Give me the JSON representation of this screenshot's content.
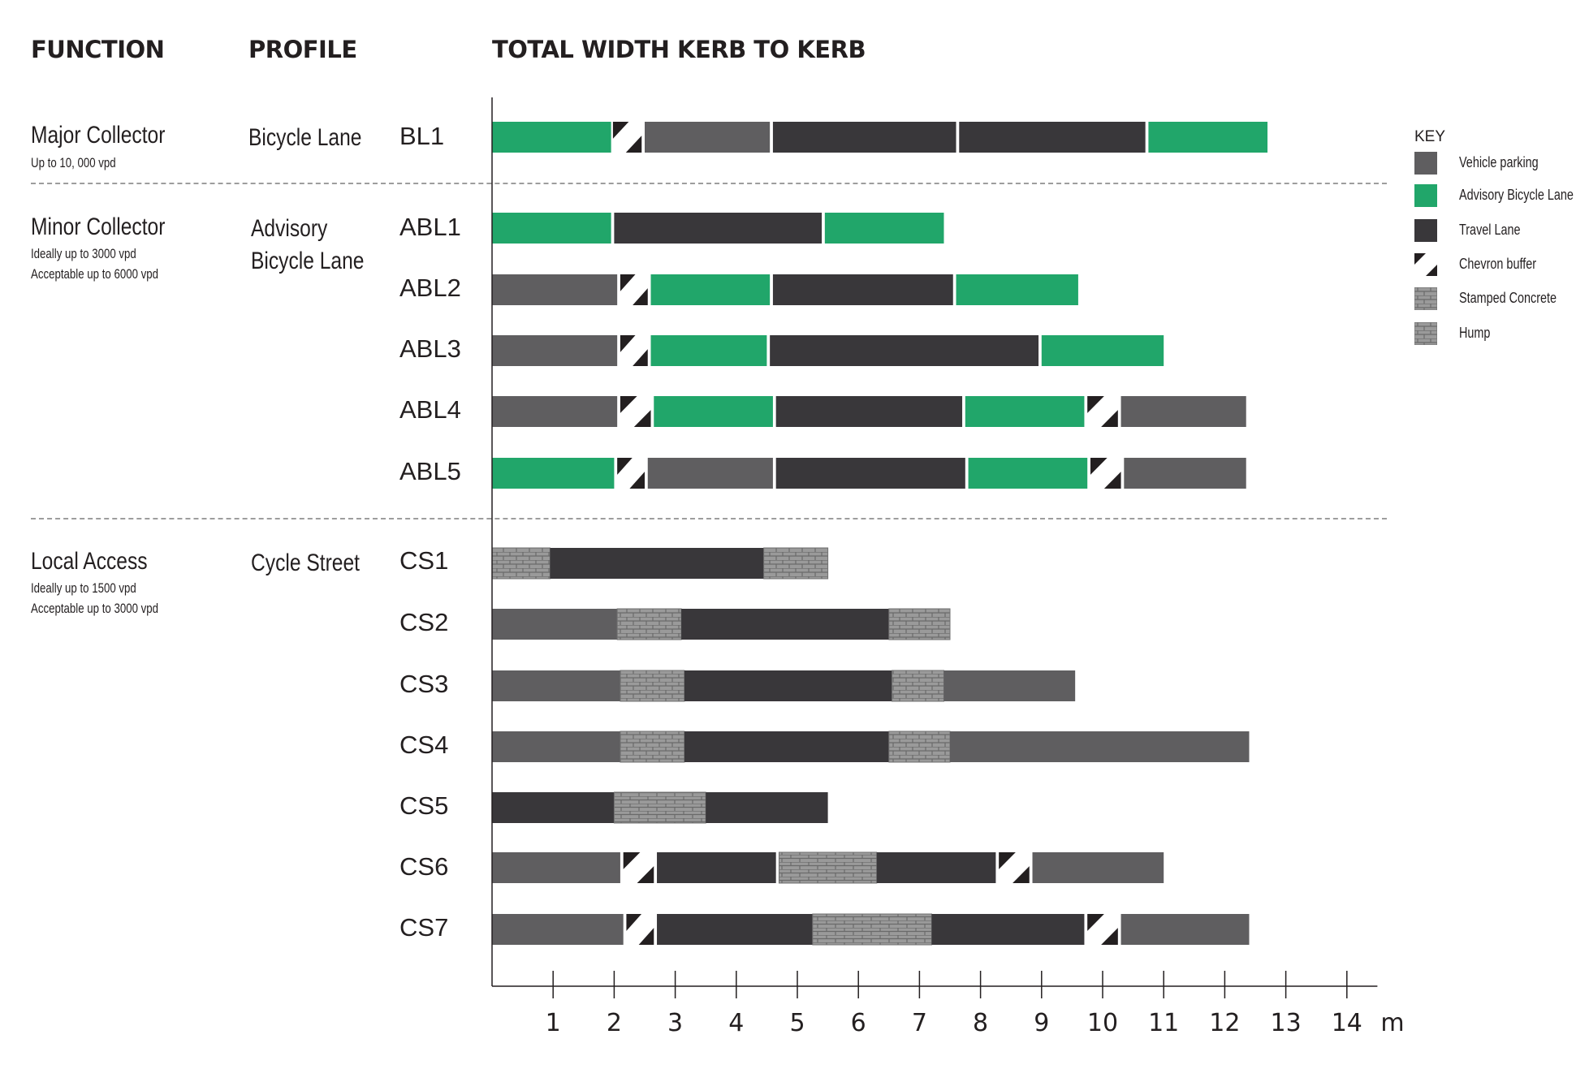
{
  "headers": {
    "function": "FUNCTION",
    "profile": "PROFILE",
    "total": "TOTAL WIDTH KERB TO KERB"
  },
  "functions": [
    {
      "title": "Major Collector",
      "sub1": "Up to 10, 000 vpd",
      "sub2": ""
    },
    {
      "title": "Minor Collector",
      "sub1": "Ideally up to 3000 vpd",
      "sub2": "Acceptable up to 6000 vpd"
    },
    {
      "title": "Local Access",
      "sub1": "Ideally up to 1500 vpd",
      "sub2": "Acceptable up  to 3000 vpd"
    }
  ],
  "profiles": [
    {
      "line1": "Bicycle Lane",
      "line2": ""
    },
    {
      "line1": "Advisory",
      "line2": "Bicycle  Lane"
    },
    {
      "line1": "Cycle Street",
      "line2": ""
    }
  ],
  "key": {
    "title": "KEY",
    "items": [
      {
        "type": "parking",
        "label": "Vehicle parking"
      },
      {
        "type": "abl",
        "label": "Advisory Bicycle Lane"
      },
      {
        "type": "travel",
        "label": "Travel Lane"
      },
      {
        "type": "chevron",
        "label": "Chevron buffer"
      },
      {
        "type": "stamped",
        "label": "Stamped Concrete"
      },
      {
        "type": "hump",
        "label": "Hump"
      }
    ]
  },
  "colors": {
    "parking": "#5f5e60",
    "abl": "#21a66a",
    "travel": "#39373a",
    "chevron_dark": "#231f20",
    "stamped": "#8c8c8c",
    "hump": "#8c8c8c",
    "axis": "#231f20"
  },
  "chart_data": {
    "type": "bar",
    "title": "TOTAL WIDTH KERB TO KERB",
    "xlabel": "",
    "x_unit": "m",
    "xlim": [
      0,
      14.5
    ],
    "x_ticks": [
      1,
      2,
      3,
      4,
      5,
      6,
      7,
      8,
      9,
      10,
      11,
      12,
      13,
      14
    ],
    "rows": [
      {
        "code": "BL1",
        "segments": [
          {
            "type": "abl",
            "from": 0,
            "to": 1.95
          },
          {
            "type": "chevron",
            "from": 1.98,
            "to": 2.45
          },
          {
            "type": "parking",
            "from": 2.5,
            "to": 4.55
          },
          {
            "type": "travel",
            "from": 4.6,
            "to": 7.6
          },
          {
            "type": "travel",
            "from": 7.65,
            "to": 10.7
          },
          {
            "type": "abl",
            "from": 10.75,
            "to": 12.7
          }
        ]
      },
      {
        "code": "ABL1",
        "segments": [
          {
            "type": "abl",
            "from": 0,
            "to": 1.95
          },
          {
            "type": "travel",
            "from": 2.0,
            "to": 5.4
          },
          {
            "type": "abl",
            "from": 5.45,
            "to": 7.4
          }
        ]
      },
      {
        "code": "ABL2",
        "segments": [
          {
            "type": "parking",
            "from": 0,
            "to": 2.05
          },
          {
            "type": "chevron",
            "from": 2.1,
            "to": 2.55
          },
          {
            "type": "abl",
            "from": 2.6,
            "to": 4.55
          },
          {
            "type": "travel",
            "from": 4.6,
            "to": 7.55
          },
          {
            "type": "abl",
            "from": 7.6,
            "to": 9.6
          }
        ]
      },
      {
        "code": "ABL3",
        "segments": [
          {
            "type": "parking",
            "from": 0,
            "to": 2.05
          },
          {
            "type": "chevron",
            "from": 2.1,
            "to": 2.55
          },
          {
            "type": "abl",
            "from": 2.6,
            "to": 4.5
          },
          {
            "type": "travel",
            "from": 4.55,
            "to": 8.95
          },
          {
            "type": "abl",
            "from": 9.0,
            "to": 11.0
          }
        ]
      },
      {
        "code": "ABL4",
        "segments": [
          {
            "type": "parking",
            "from": 0,
            "to": 2.05
          },
          {
            "type": "chevron",
            "from": 2.1,
            "to": 2.6
          },
          {
            "type": "abl",
            "from": 2.65,
            "to": 4.6
          },
          {
            "type": "travel",
            "from": 4.65,
            "to": 7.7
          },
          {
            "type": "abl",
            "from": 7.75,
            "to": 9.7
          },
          {
            "type": "chevron",
            "from": 9.75,
            "to": 10.25
          },
          {
            "type": "parking",
            "from": 10.3,
            "to": 12.35
          }
        ]
      },
      {
        "code": "ABL5",
        "segments": [
          {
            "type": "abl",
            "from": 0,
            "to": 2.0
          },
          {
            "type": "chevron",
            "from": 2.05,
            "to": 2.5
          },
          {
            "type": "parking",
            "from": 2.55,
            "to": 4.6
          },
          {
            "type": "travel",
            "from": 4.65,
            "to": 7.75
          },
          {
            "type": "abl",
            "from": 7.8,
            "to": 9.75
          },
          {
            "type": "chevron",
            "from": 9.8,
            "to": 10.3
          },
          {
            "type": "parking",
            "from": 10.35,
            "to": 12.35
          }
        ]
      },
      {
        "code": "CS1",
        "segments": [
          {
            "type": "stamped",
            "from": 0,
            "to": 0.95
          },
          {
            "type": "travel",
            "from": 0.95,
            "to": 4.45
          },
          {
            "type": "stamped",
            "from": 4.45,
            "to": 5.5
          }
        ]
      },
      {
        "code": "CS2",
        "segments": [
          {
            "type": "parking",
            "from": 0,
            "to": 2.05
          },
          {
            "type": "stamped",
            "from": 2.05,
            "to": 3.1
          },
          {
            "type": "travel",
            "from": 3.1,
            "to": 6.5
          },
          {
            "type": "stamped",
            "from": 6.5,
            "to": 7.5
          }
        ]
      },
      {
        "code": "CS3",
        "segments": [
          {
            "type": "parking",
            "from": 0,
            "to": 2.1
          },
          {
            "type": "stamped",
            "from": 2.1,
            "to": 3.15
          },
          {
            "type": "travel",
            "from": 3.15,
            "to": 6.55
          },
          {
            "type": "stamped",
            "from": 6.55,
            "to": 7.4
          },
          {
            "type": "parking",
            "from": 7.4,
            "to": 9.55
          }
        ]
      },
      {
        "code": "CS4",
        "segments": [
          {
            "type": "parking",
            "from": 0,
            "to": 2.1
          },
          {
            "type": "stamped",
            "from": 2.1,
            "to": 3.15
          },
          {
            "type": "travel",
            "from": 3.15,
            "to": 6.5
          },
          {
            "type": "stamped",
            "from": 6.5,
            "to": 7.5
          },
          {
            "type": "parking",
            "from": 7.5,
            "to": 12.4
          }
        ]
      },
      {
        "code": "CS5",
        "segments": [
          {
            "type": "travel",
            "from": 0,
            "to": 2.0
          },
          {
            "type": "hump",
            "from": 2.0,
            "to": 3.5
          },
          {
            "type": "travel",
            "from": 3.5,
            "to": 5.5
          }
        ]
      },
      {
        "code": "CS6",
        "segments": [
          {
            "type": "parking",
            "from": 0,
            "to": 2.1
          },
          {
            "type": "chevron",
            "from": 2.15,
            "to": 2.65
          },
          {
            "type": "travel",
            "from": 2.7,
            "to": 4.65
          },
          {
            "type": "hump",
            "from": 4.7,
            "to": 6.3
          },
          {
            "type": "travel",
            "from": 6.3,
            "to": 8.25
          },
          {
            "type": "chevron",
            "from": 8.3,
            "to": 8.8
          },
          {
            "type": "parking",
            "from": 8.85,
            "to": 11.0
          }
        ]
      },
      {
        "code": "CS7",
        "segments": [
          {
            "type": "parking",
            "from": 0,
            "to": 2.15
          },
          {
            "type": "chevron",
            "from": 2.2,
            "to": 2.65
          },
          {
            "type": "travel",
            "from": 2.7,
            "to": 5.25
          },
          {
            "type": "hump",
            "from": 5.25,
            "to": 7.2
          },
          {
            "type": "travel",
            "from": 7.2,
            "to": 9.7
          },
          {
            "type": "chevron",
            "from": 9.75,
            "to": 10.25
          },
          {
            "type": "parking",
            "from": 10.3,
            "to": 12.4
          }
        ]
      }
    ]
  }
}
